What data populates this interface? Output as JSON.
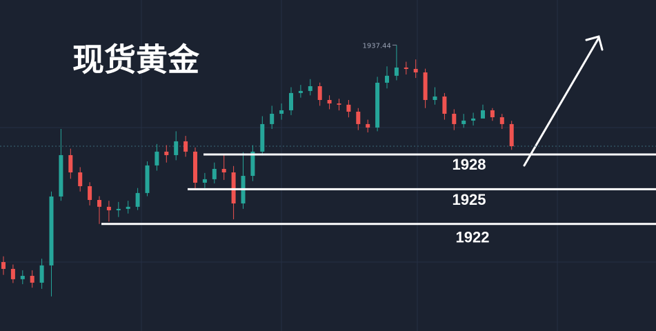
{
  "chart_data": {
    "type": "candlestick",
    "title": "现货黄金",
    "ylim": [
      1912.76,
      1941.33
    ],
    "up_color": "#26a69a",
    "down_color": "#ef5350",
    "open": [
      1918.71,
      1918.12,
      1917.23,
      1917.52,
      1916.93,
      1918.42,
      1924.37,
      1927.94,
      1926.45,
      1925.26,
      1924.07,
      1923.48,
      1923.18,
      1923.3,
      1923.48,
      1924.67,
      1927.05,
      1928.24,
      1927.94,
      1929.13,
      1928.24,
      1925.56,
      1925.86,
      1926.75,
      1926.45,
      1923.77,
      1926.15,
      1928.24,
      1930.62,
      1931.51,
      1931.81,
      1933.3,
      1933.48,
      1933.89,
      1932.7,
      1932.4,
      1932.29,
      1931.69,
      1930.62,
      1930.32,
      1934.19,
      1934.79,
      1935.5,
      1935.38,
      1935.08,
      1932.7,
      1933.0,
      1931.51,
      1930.62,
      1930.92,
      1931.1,
      1931.81,
      1931.21,
      1930.62
    ],
    "high": [
      1919.2,
      1918.5,
      1918.0,
      1918.0,
      1919.0,
      1924.8,
      1930.2,
      1928.5,
      1926.9,
      1925.6,
      1924.4,
      1924.0,
      1923.9,
      1924.0,
      1925.1,
      1927.4,
      1928.9,
      1928.8,
      1930.0,
      1929.6,
      1928.6,
      1926.4,
      1927.3,
      1928.0,
      1927.0,
      1928.2,
      1928.8,
      1931.3,
      1932.2,
      1932.4,
      1933.8,
      1934.0,
      1934.5,
      1934.2,
      1933.1,
      1932.8,
      1932.7,
      1932.0,
      1931.0,
      1934.7,
      1935.6,
      1937.44,
      1936.0,
      1936.2,
      1935.4,
      1933.8,
      1933.3,
      1931.9,
      1931.5,
      1931.6,
      1932.3,
      1932.0,
      1931.5,
      1930.9
    ],
    "low": [
      1917.6,
      1916.9,
      1916.8,
      1916.5,
      1916.4,
      1915.74,
      1924.0,
      1925.9,
      1924.8,
      1923.6,
      1922.0,
      1922.2,
      1922.6,
      1922.9,
      1923.2,
      1924.4,
      1926.6,
      1927.3,
      1927.5,
      1927.8,
      1925.0,
      1925.1,
      1925.5,
      1925.8,
      1922.4,
      1923.3,
      1925.7,
      1927.9,
      1930.2,
      1931.0,
      1931.4,
      1932.9,
      1933.1,
      1932.2,
      1931.9,
      1931.8,
      1931.2,
      1930.1,
      1929.9,
      1930.0,
      1933.7,
      1934.4,
      1934.9,
      1934.6,
      1932.0,
      1932.3,
      1931.0,
      1930.1,
      1930.3,
      1930.5,
      1931.2,
      1930.9,
      1930.2,
      1928.4
    ],
    "close": [
      1918.12,
      1917.23,
      1917.52,
      1916.93,
      1918.42,
      1924.37,
      1927.94,
      1926.45,
      1925.26,
      1924.07,
      1923.48,
      1923.18,
      1923.3,
      1923.48,
      1924.67,
      1927.05,
      1928.24,
      1927.94,
      1929.13,
      1928.24,
      1925.56,
      1925.86,
      1926.75,
      1926.45,
      1923.77,
      1926.15,
      1928.24,
      1930.62,
      1931.51,
      1931.81,
      1933.3,
      1933.48,
      1933.89,
      1932.7,
      1932.4,
      1932.29,
      1931.69,
      1930.62,
      1930.32,
      1934.19,
      1934.79,
      1935.5,
      1935.38,
      1935.08,
      1932.7,
      1933.0,
      1931.51,
      1930.62,
      1930.92,
      1931.1,
      1931.81,
      1931.21,
      1930.62,
      1928.71
    ],
    "levels": [
      1928,
      1925,
      1922
    ]
  }
}
